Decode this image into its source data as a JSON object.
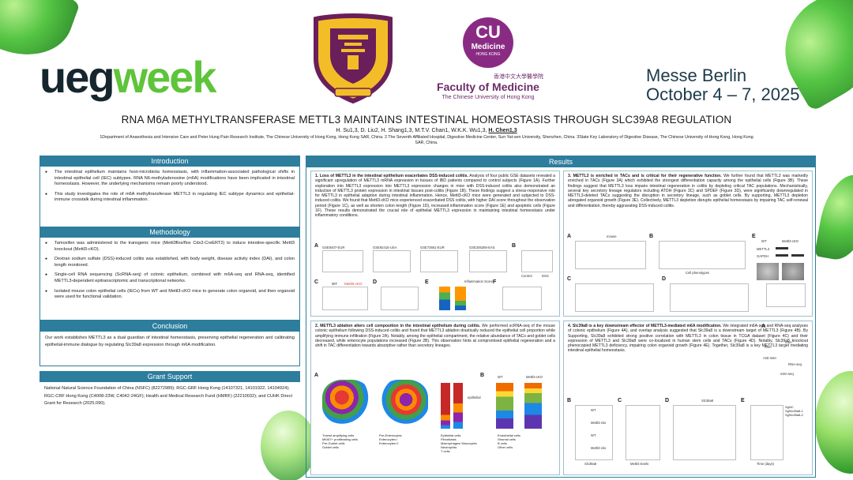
{
  "header": {
    "brand_a": "ueg",
    "brand_b": "week",
    "venue_line1": "Messe Berlin",
    "venue_line2": "October 4 – 7, 2025",
    "cu_medicine": {
      "cu": "CU",
      "medicine": "Medicine",
      "hong_kong": "HONG KONG",
      "chinese": "香港中文大學醫學院",
      "faculty": "Faculty of Medicine",
      "university": "The Chinese University of Hong Kong"
    }
  },
  "poster": {
    "title": "RNA M6A METHYLTRANSFERASE METTL3 MAINTAINS INTESTINAL HOMEOSTASIS THROUGH SLC39A8 REGULATION",
    "authors": "H. Su1,3, D. Liu2, H. Shang1,3, M.T.V. Chan1, W.K.K. Wu1,3,",
    "presenting_author": "H. Chen1,3",
    "affiliations": "1Department of Anaesthesia and Intensive Care and Peter Hung Pain Research Institute, The Chinese University of Hong Kong, Hong Kong SAR, China. 2 The Seventh Affiliated Hospital, Digestive Medicine Center, Sun Yat-sen University, Shenzhen, China. 3State Key Laboratory of Digestive Disease, The Chinese University of Hong Kong, Hong Kong SAR, China."
  },
  "sections": {
    "introduction": {
      "heading": "Introduction",
      "bullets": [
        "The intestinal epithelium maintains host-microbiota homeostasis, with inflammation-associated pathological shifts in intestinal epithelial cell (IEC) subtypes. RNA N6-methyladenosine (m6A) modifications have been implicated in intestinal homeostasis. However, the underlying mechanisms remain poorly understood.",
        "This study investigates the role of m6A methyltransferase METTL3 in regulating IEC subtype dynamics and epithelial-immune crosstalk during intestinal inflammation."
      ]
    },
    "methodology": {
      "heading": "Methodology",
      "bullets": [
        "Tamoxifen was administered to the transgenic mice (Mettl3flox/flox Cdx2-CreERT2) to induce intestine-specific Mettl3 knockout (Mettl3-cKO).",
        "Dextran sodium sulfate (DSS)-induced colitis was established, with body weight, disease activity index (DAI), and colon length monitored.",
        "Single-cell RNA sequencing (ScRNA-seq) of colonic epithelium, combined with m6A-seq and RNA-seq, identified METTL3-dependent epitranscriptomic and transcriptional networks.",
        "Isolated mouse colon epithelial cells (IECs) from WT and Mettl3-cKO mice to generate colon organoid, and then organoid were used for functional validation."
      ]
    },
    "conclusion": {
      "heading": "Conclusion",
      "text": "Our work establishes METTL3 as a dual guardian of intestinal homeostasis, preserving epithelial regeneration and calibrating epithelial-immune dialogue by regulating Slc39a8 expression through m6A modification."
    },
    "grant": {
      "heading": "Grant Support",
      "text": "National Natural Science Foundation of China (NSFC) (82272989); RGC-GRF Hong Kong (14107321, 14101922, 14104924); RGC-CRF Hong Kong (C4008-23W, C4042-24GF); Health and Medical Research Fund (HMRF) (22210032); and CUHK Direct Grant for Research (2025.090)."
    },
    "results": {
      "heading": "Results",
      "r1_title": "1. Loss of METTL3 in the intestinal epithelium exacerbates DSS-induced colitis.",
      "r1_text": "Analysis of four public GSE datasets revealed a significant upregulation of METTL3 mRNA expression in tissues of IBD patients compared to control subjects (Figure 1A). Further exploration into METTL3 expression into METTL3 expression changes in mice with DSS-induced colitis also demonstrated an induction of METTL3 protein expression in intestinal tissues post-colitis (Figure 1B). These findings suggest a stress-responsive role for METTL3 in epithelial adaption during intestinal inflammation. Hence, Mettl3-cKO mice were generated and subjected to DSS-induced colitis. We found that Mettl3-cKO mice experienced exacerbated DSS colitis, with higher DAI score throughout the observation period (Figure 1C), as well as shorten colon length (Figure 1D), increased inflammation score (Figure 1E) and apoptotic cells (Figure 1F). These results demonstrated the crucial role of epithelial METTL3 expression in maintaining intestinal homeostasis under inflammatory conditions.",
      "r2_title": "2. METTL3 ablation alters cell composition in the intestinal epithelium during colitis.",
      "r2_text": "We performed scRNA-seq of the mouse colonic epithelium following DSS-induced colitis and found that METTL3 ablation drastically reduced the epithelial cell proportion while amplifying immune infiltration (Figure 2A). Notably, among the epithelial compartment, the relative abundance of TACs and goblet cells decreased, while enterocyte populations increased (Figure 2B). This observation hints at compromised epithelial regeneration and a shift in TAC differentiation towards absorptive rather than secretory lineages.",
      "r3_title": "3. METTL3 is enriched in TACs and is critical for their regenerative function.",
      "r3_text": "We further found that METTL3 was markedly enriched in TACs (Figure 3A) which exhibited the strongest differentiation capacity among the epithelial cells (Figure 3B). These findings suggest that METTL3 loss impairs intestinal regeneration in colitis by depleting critical TAC populations. Mechanistically, several key secretory lineage regulators including ATOH (Figure 3C) and SPDEF (Figure 3D), were significantly downregulated in METTL3-deleted TACs suggesting the disruption in secretory lineage, such as goblet cells. By supporting, METTL3 depletion abrogated organoid growth (Figure 3E). Collectively, METTL3 depletion disrupts epithelial homeostasis by impairing TAC self-renewal and differentiation, thereby aggravating DSS-induced colitis.",
      "r4_title": "4. Slc39a8 is a key downstream effector of METTL3-mediated m6A modification.",
      "r4_text": "We integrated m6A-seq and RNA-seq analyses of colonic epithelium (Figure 4A), and overlap analysis suggested that Slc39a8 is a downstream target of METTL3 (Figure 4B). By Supporting, Slc39a8 exhibited strong positive correlation with METTL3 in colon tissue in TCGA dataset (Figure 4C) and their expression of METTL3 and Slc39a8 were co-localized in human stem cells and TACs (Figure 4D). Notably, Slc39a8 knockout phenocopied METTL3 deficiency, impairing colon organoid growth (Figure 4E). Together, Slc39a8 is a key METTL3 target mediating intestinal epithelial homeostasis."
    }
  },
  "figures": {
    "fig1": {
      "panel_a": "A",
      "panel_b": "B",
      "panel_c": "C",
      "panel_d": "D",
      "panel_e": "E",
      "panel_f": "F",
      "datasets": [
        "GSE6407-EUR",
        "GSE92415-USA",
        "GSE73661-EUR",
        "GSE206285-EAS"
      ],
      "groups_a": [
        "Con",
        "CD",
        "UC"
      ],
      "ylabel_a": "METTL3 mRNA",
      "b_groups": [
        "Control",
        "DSS"
      ],
      "b_ylabel": "METTL3 Expression",
      "legend_wt": "WT",
      "legend_cko": "Mettl3-cKO",
      "c_xlabel": "Days",
      "c_ylabel": "DAI score",
      "d_ylabel": "Colon length (cm)",
      "e_title": "Inflammation Score",
      "e_ylabel": "Percentage",
      "f_ylabel": "CC3+ cells/crypt",
      "sig": "**",
      "sig3": "***"
    },
    "fig2": {
      "panel_a": "A",
      "panel_b": "B",
      "wt": "WT",
      "cko": "Mettl3-cKO",
      "epithelial": "epithelial",
      "ylabel_b": "Percentage",
      "legend_a": [
        "Epithelial cells",
        "Fibroblasts",
        "Macrophages/ Monocytes",
        "Neutrophils",
        "T cells",
        "Endothelial cells",
        "Stromal cells",
        "B cells",
        "Other cells"
      ],
      "legend_b": [
        "Transit amplifying cells",
        "MKI67+ proliferating cells",
        "Pre-Goblet cells",
        "Goblet cells",
        "Pre-Enterocytes",
        "Enterocytes I",
        "Enterocytes II"
      ]
    },
    "fig3": {
      "panel_a": "A",
      "panel_b": "B",
      "panel_c": "C",
      "panel_d": "D",
      "panel_e": "E",
      "mouse": "mouse",
      "ylabel_a": "METTL3 mRNA",
      "b_xlabel": "Cell phenotypes",
      "wt": "WT",
      "ko": "KO",
      "cko": "Mettl3-cKO",
      "blot_rows": [
        "METTL3",
        "GAPDH"
      ],
      "c_ylabel": "ATOH1",
      "d_ylabel": "SPDEF",
      "e_ylabel": "Organoid area (µm²)",
      "e_xlabel": "Days"
    },
    "fig4": {
      "panel_a": "A",
      "panel_b": "B",
      "panel_c": "C",
      "panel_d": "D",
      "panel_e": "E",
      "a_nodes": [
        "RNA",
        "m6A",
        "Anti-m6A",
        "RNA-seq",
        "m6A-seq"
      ],
      "b_labels": [
        "WT",
        "Mettl3-cko",
        "WT",
        "Mettl3-cko"
      ],
      "b_ylabel": "m6A-IP read-depth",
      "b_gene": "Slc39a8",
      "c_ylabel": "Slc39a8 levels",
      "c_xlabel": "Mettl3 levels",
      "d_title": "Slc39a8",
      "d_ylabel": "Expression level",
      "e_legend": [
        "SgNC",
        "SgSlc39a8-1",
        "SgSlc39a8-2"
      ],
      "e_ylabel": "Colon organoid size",
      "e_xlabel": "Time (days)"
    }
  },
  "colors": {
    "header_blue": "#2d7d9d",
    "brand_dark": "#15262f",
    "brand_green": "#5ec43a",
    "cu_purple": "#8a2b83",
    "wt": "#222222",
    "cko": "#e53935"
  }
}
